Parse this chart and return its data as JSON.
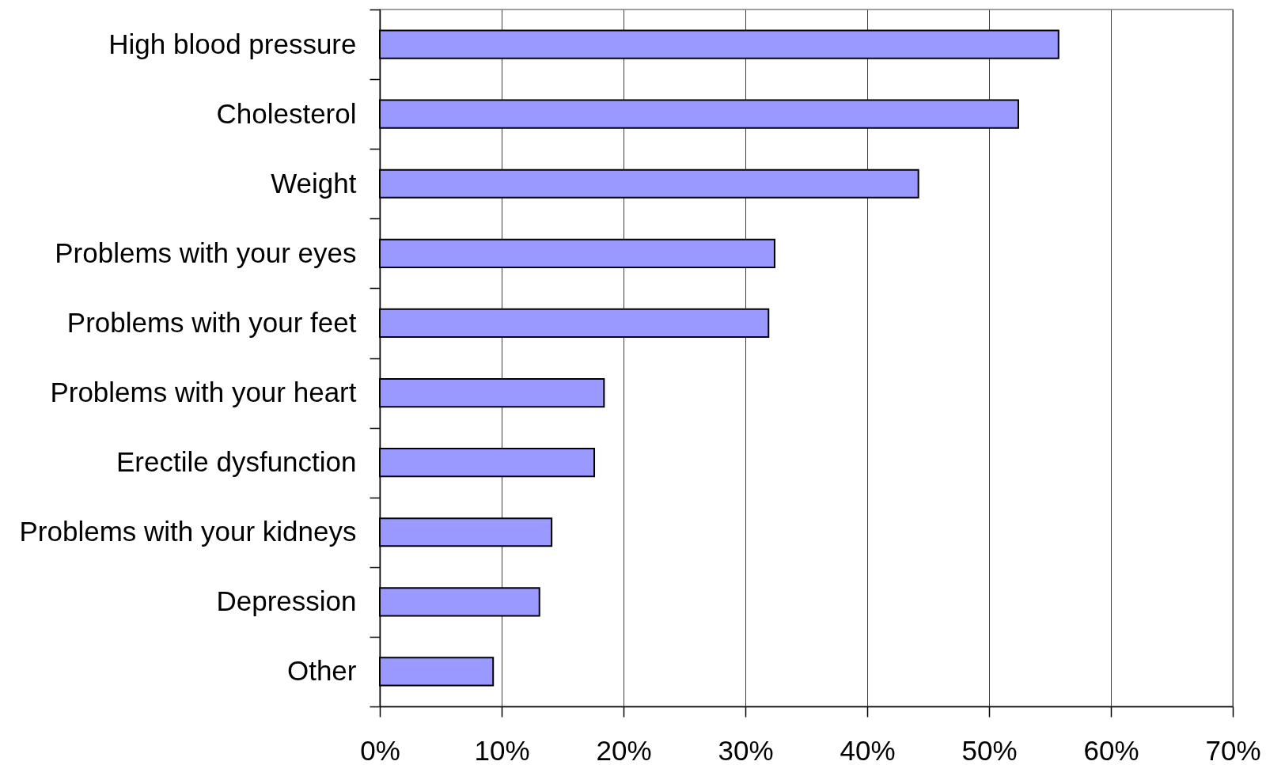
{
  "chart_data": {
    "type": "bar",
    "orientation": "horizontal",
    "categories": [
      "High blood pressure",
      "Cholesterol",
      "Weight",
      "Problems with your eyes",
      "Problems with your feet",
      "Problems with your heart",
      "Erectile dysfunction",
      "Problems with your kidneys",
      "Depression",
      "Other"
    ],
    "values": [
      55.7,
      52.4,
      44.2,
      32.4,
      31.9,
      18.4,
      17.6,
      14.1,
      13.1,
      9.3
    ],
    "color": "#9999ff",
    "xlim": [
      0,
      70
    ],
    "xticks": [
      {
        "value": 0,
        "label": "0%"
      },
      {
        "value": 10,
        "label": "10%"
      },
      {
        "value": 20,
        "label": "20%"
      },
      {
        "value": 30,
        "label": "30%"
      },
      {
        "value": 40,
        "label": "40%"
      },
      {
        "value": 50,
        "label": "50%"
      },
      {
        "value": 60,
        "label": "60%"
      },
      {
        "value": 70,
        "label": "70%"
      }
    ],
    "grid": "x"
  }
}
